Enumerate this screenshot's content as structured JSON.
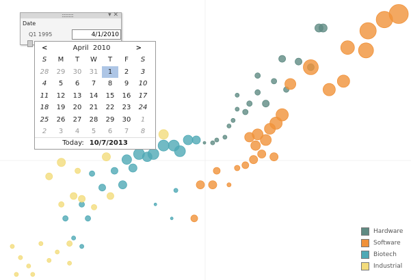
{
  "filter": {
    "title": "Date",
    "start_label": "Q1 1995",
    "end_value": "4/1/2010"
  },
  "calendar": {
    "month": "April",
    "year": "2010",
    "dow": [
      "S",
      "M",
      "T",
      "W",
      "T",
      "F",
      "S"
    ],
    "weeks": [
      [
        "28",
        "29",
        "30",
        "31",
        "1",
        "2",
        "3"
      ],
      [
        "4",
        "5",
        "6",
        "7",
        "8",
        "9",
        "10"
      ],
      [
        "11",
        "12",
        "13",
        "14",
        "15",
        "16",
        "17"
      ],
      [
        "18",
        "19",
        "20",
        "21",
        "22",
        "23",
        "24"
      ],
      [
        "25",
        "26",
        "27",
        "28",
        "29",
        "30",
        "1"
      ],
      [
        "2",
        "3",
        "4",
        "5",
        "6",
        "7",
        "8"
      ]
    ],
    "selected": "1",
    "today_label": "Today:",
    "today_value": "10/7/2013"
  },
  "chart_data": {
    "type": "scatter",
    "xlim": [
      0,
      100
    ],
    "ylim": [
      0,
      100
    ],
    "grid": true,
    "legend_placement": "bottom-right",
    "series": [
      {
        "name": "Hardware",
        "color": "#5f8b83",
        "points": [
          [
            78,
            90,
            6
          ],
          [
            79,
            90,
            6
          ],
          [
            69,
            79,
            5
          ],
          [
            73,
            78,
            5
          ],
          [
            76,
            76,
            5
          ],
          [
            63,
            73,
            4
          ],
          [
            63,
            67,
            4
          ],
          [
            58,
            66,
            3
          ],
          [
            61,
            63,
            4
          ],
          [
            65,
            63,
            5
          ],
          [
            58,
            61,
            3
          ],
          [
            60,
            60,
            4
          ],
          [
            57,
            57,
            3
          ],
          [
            56,
            55,
            3
          ],
          [
            53,
            50,
            3
          ],
          [
            52,
            49,
            3
          ],
          [
            50,
            49,
            2
          ],
          [
            67,
            71,
            4
          ],
          [
            70,
            68,
            4
          ],
          [
            55,
            51,
            3
          ]
        ]
      },
      {
        "name": "Software",
        "color": "#f0923a",
        "points": [
          [
            97.5,
            95,
            14
          ],
          [
            94,
            93,
            12
          ],
          [
            90,
            89,
            12
          ],
          [
            89.5,
            82,
            11
          ],
          [
            85,
            83,
            10
          ],
          [
            76,
            76,
            11
          ],
          [
            84,
            71,
            9
          ],
          [
            80.5,
            68,
            9
          ],
          [
            71,
            70,
            8
          ],
          [
            69,
            59,
            9
          ],
          [
            67.5,
            56,
            9
          ],
          [
            66,
            54,
            8
          ],
          [
            63,
            52,
            8
          ],
          [
            61,
            51,
            7
          ],
          [
            62.5,
            48,
            7
          ],
          [
            64,
            45,
            6
          ],
          [
            62,
            43,
            6
          ],
          [
            60,
            41,
            5
          ],
          [
            58,
            40,
            4
          ],
          [
            53,
            39,
            5
          ],
          [
            49,
            34,
            6
          ],
          [
            52,
            34,
            6
          ],
          [
            47.5,
            22,
            5
          ],
          [
            56,
            34,
            3
          ],
          [
            67,
            44,
            6
          ],
          [
            65,
            50,
            8
          ]
        ]
      },
      {
        "name": "Biotech",
        "color": "#4fa9b5",
        "points": [
          [
            44,
            46,
            8
          ],
          [
            42.5,
            48,
            8
          ],
          [
            40,
            48,
            8
          ],
          [
            37.5,
            45,
            8
          ],
          [
            34,
            45,
            8
          ],
          [
            31,
            43,
            7
          ],
          [
            32.5,
            40,
            6
          ],
          [
            36,
            44,
            7
          ],
          [
            46,
            50,
            7
          ],
          [
            48,
            50,
            6
          ],
          [
            28,
            39,
            5
          ],
          [
            30,
            34,
            6
          ],
          [
            25,
            33,
            5
          ],
          [
            22.5,
            38,
            4
          ],
          [
            20,
            27,
            4
          ],
          [
            16,
            22,
            4
          ],
          [
            21.5,
            22,
            4
          ],
          [
            18,
            15,
            3
          ],
          [
            20,
            12,
            3
          ],
          [
            43,
            32,
            3
          ],
          [
            38,
            27,
            2
          ],
          [
            42,
            22,
            2
          ]
        ]
      },
      {
        "name": "Industrial",
        "color": "#f3dc7c",
        "points": [
          [
            40,
            52,
            7
          ],
          [
            26,
            44,
            6
          ],
          [
            15,
            42,
            6
          ],
          [
            12,
            37,
            5
          ],
          [
            19,
            39,
            4
          ],
          [
            18,
            30,
            5
          ],
          [
            27,
            30,
            5
          ],
          [
            23,
            26,
            4
          ],
          [
            20,
            29,
            5
          ],
          [
            15,
            27,
            4
          ],
          [
            17,
            13,
            4
          ],
          [
            10,
            13,
            3
          ],
          [
            12,
            7,
            3
          ],
          [
            3,
            12,
            3
          ],
          [
            4,
            2,
            3
          ],
          [
            7,
            5,
            3
          ],
          [
            8,
            2,
            3
          ],
          [
            14,
            10,
            3
          ],
          [
            17,
            6,
            3
          ],
          [
            5,
            8,
            3
          ]
        ]
      }
    ]
  }
}
